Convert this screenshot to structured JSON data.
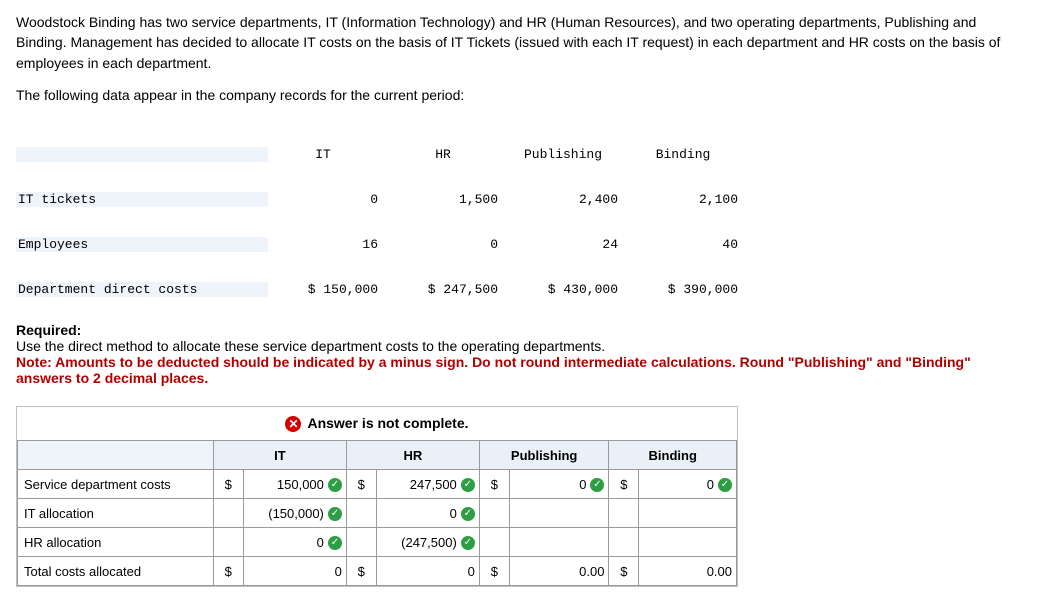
{
  "problem": {
    "p1": "Woodstock Binding has two service departments, IT (Information Technology) and HR (Human Resources), and two operating departments, Publishing and Binding. Management has decided to allocate IT costs on the basis of IT Tickets (issued with each IT request) in each department and HR costs on the basis of employees in each department.",
    "p2": "The following data appear in the company records for the current period:"
  },
  "dataTable": {
    "headers": [
      "IT",
      "HR",
      "Publishing",
      "Binding"
    ],
    "rows": [
      {
        "label": "IT tickets",
        "vals": [
          "0",
          "1,500",
          "2,400",
          "2,100"
        ]
      },
      {
        "label": "Employees",
        "vals": [
          "16",
          "0",
          "24",
          "40"
        ]
      },
      {
        "label": "Department direct costs",
        "vals": [
          "$ 150,000",
          "$ 247,500",
          "$ 430,000",
          "$ 390,000"
        ]
      }
    ]
  },
  "required": {
    "title": "Required:",
    "line1": "Use the direct method to allocate these service department costs to the operating departments.",
    "note": "Note: Amounts to be deducted should be indicated by a minus sign. Do not round intermediate calculations. Round \"Publishing\" and \"Binding\" answers to 2 decimal places."
  },
  "answer": {
    "status": "Answer is not complete.",
    "cols": [
      "IT",
      "HR",
      "Publishing",
      "Binding"
    ],
    "rows": [
      {
        "label": "Service department costs",
        "cells": [
          {
            "cur": "$",
            "val": "150,000",
            "check": true
          },
          {
            "cur": "$",
            "val": "247,500",
            "check": true
          },
          {
            "cur": "$",
            "val": "0",
            "check": true
          },
          {
            "cur": "$",
            "val": "0",
            "check": true
          }
        ]
      },
      {
        "label": "IT allocation",
        "cells": [
          {
            "cur": "",
            "val": "(150,000)",
            "check": true
          },
          {
            "cur": "",
            "val": "0",
            "check": true
          },
          {
            "cur": "",
            "val": "",
            "check": false
          },
          {
            "cur": "",
            "val": "",
            "check": false
          }
        ]
      },
      {
        "label": "HR allocation",
        "cells": [
          {
            "cur": "",
            "val": "0",
            "check": true
          },
          {
            "cur": "",
            "val": "(247,500)",
            "check": true
          },
          {
            "cur": "",
            "val": "",
            "check": false
          },
          {
            "cur": "",
            "val": "",
            "check": false
          }
        ]
      },
      {
        "label": "Total costs allocated",
        "cells": [
          {
            "cur": "$",
            "val": "0",
            "check": false
          },
          {
            "cur": "$",
            "val": "0",
            "check": false
          },
          {
            "cur": "$",
            "val": "0.00",
            "check": false
          },
          {
            "cur": "$",
            "val": "0.00",
            "check": false
          }
        ]
      }
    ]
  },
  "colors": {
    "noteRed": "#b00000",
    "statusRed": "#d30000",
    "checkGreen": "#2e9e44",
    "shadeBlue": "#eef4fa",
    "border": "#9a9a9a"
  }
}
